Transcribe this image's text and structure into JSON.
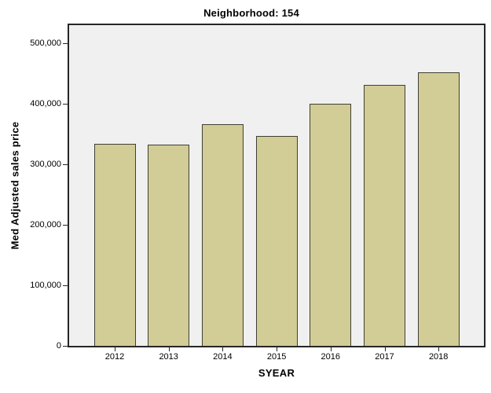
{
  "chart_data": {
    "type": "bar",
    "title": "Neighborhood: 154",
    "xlabel": "SYEAR",
    "ylabel": "Med Adjusted sales price",
    "categories": [
      "2012",
      "2013",
      "2014",
      "2015",
      "2016",
      "2017",
      "2018"
    ],
    "values": [
      334000,
      332000,
      366000,
      347000,
      400000,
      431000,
      452000
    ],
    "ylim": [
      0,
      530000
    ],
    "yticks": [
      0,
      100000,
      200000,
      300000,
      400000,
      500000
    ],
    "ytick_labels": [
      "0",
      "100,000",
      "200,000",
      "300,000",
      "400,000",
      "500,000"
    ],
    "grid": "off",
    "legend": "none",
    "colors": {
      "bar_fill": "#d2cc96",
      "bar_border": "#3f3f35",
      "plot_bg": "#f0f0f0",
      "axis": "#262626",
      "page_bg": "#ffffff",
      "text": "#000000"
    }
  }
}
